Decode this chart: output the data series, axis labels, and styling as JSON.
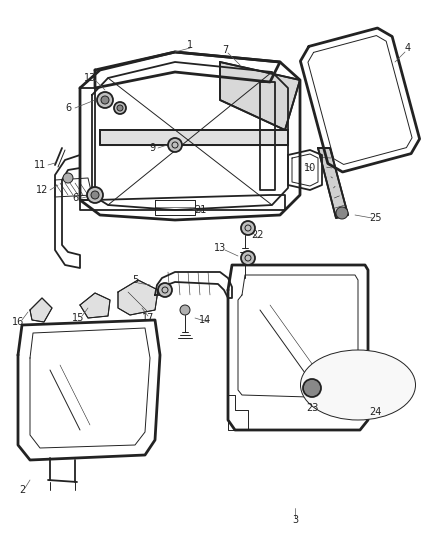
{
  "bg_color": "#ffffff",
  "fig_width": 4.38,
  "fig_height": 5.33,
  "dpi": 100,
  "line_color": "#222222",
  "label_color": "#222222",
  "label_fontsize": 7.0,
  "lw_thick": 2.0,
  "lw_med": 1.3,
  "lw_thin": 0.7,
  "lw_hair": 0.4
}
